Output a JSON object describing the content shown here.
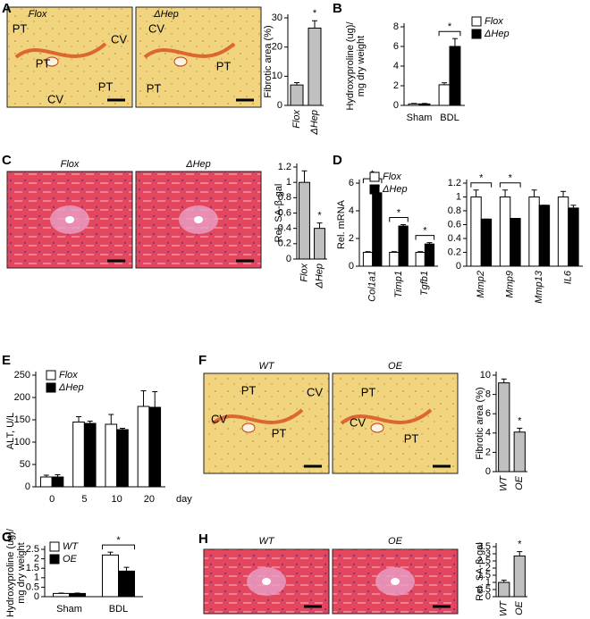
{
  "chart_data": [
    {
      "type": "bar",
      "panel": "A",
      "ylabel": [
        "Fibrotic area (%)"
      ],
      "categories": [
        "Flox",
        "ΔHep"
      ],
      "values": [
        7,
        26.5
      ],
      "errors": [
        0.8,
        2.5
      ],
      "color": "#c0c0c0",
      "ylim": [
        0,
        30
      ],
      "yticks": [
        0,
        10,
        20,
        30
      ],
      "annotations": [
        "*"
      ]
    },
    {
      "type": "bar",
      "panel": "B",
      "ylabel": [
        "Hydroxyproline (ug)/",
        "mg dry weight"
      ],
      "categories": [
        "Sham",
        "BDL"
      ],
      "series": [
        {
          "name": "Flox",
          "color": "#ffffff",
          "values": [
            0.15,
            2.1
          ],
          "errors": [
            0.05,
            0.2
          ]
        },
        {
          "name": "ΔHep",
          "color": "#000000",
          "values": [
            0.15,
            6.0
          ],
          "errors": [
            0.05,
            0.8
          ]
        }
      ],
      "ylim": [
        0,
        8
      ],
      "yticks": [
        0,
        2,
        4,
        6,
        8
      ],
      "annotations": [
        "*"
      ],
      "legend": true
    },
    {
      "type": "bar",
      "panel": "C",
      "ylabel": [
        "Rel. SA-β-gal"
      ],
      "categories": [
        "Flox",
        "ΔHep"
      ],
      "values": [
        1.0,
        0.4
      ],
      "errors": [
        0.15,
        0.07
      ],
      "color": "#c0c0c0",
      "ylim": [
        0,
        1.2
      ],
      "yticks": [
        0,
        0.2,
        0.4,
        0.6,
        0.8,
        1,
        1.2
      ],
      "annotations": [
        "*"
      ]
    },
    {
      "type": "bar",
      "panel": "D",
      "ylabel": [
        "Rel. mRNA"
      ],
      "categories": [
        "Col1a1",
        "Timp1",
        "Tgfb1"
      ],
      "series": [
        {
          "name": "Flox",
          "color": "#ffffff",
          "values": [
            1,
            1,
            1
          ],
          "errors": [
            0.05,
            0.05,
            0.05
          ]
        },
        {
          "name": "ΔHep",
          "color": "#000000",
          "values": [
            5.3,
            2.9,
            1.6
          ],
          "errors": [
            0.5,
            0.1,
            0.1
          ]
        }
      ],
      "ylim": [
        0,
        6
      ],
      "yticks": [
        0,
        2,
        4,
        6
      ],
      "annotations": [
        "*",
        "*",
        "*"
      ],
      "legend": true
    },
    {
      "type": "bar",
      "categories": [
        "Mmp2",
        "Mmp9",
        "Mmp13",
        "IL6"
      ],
      "series": [
        {
          "color": "#ffffff",
          "values": [
            1,
            1,
            1,
            1
          ],
          "errors": [
            0.1,
            0.1,
            0.1,
            0.08
          ]
        },
        {
          "color": "#000000",
          "values": [
            0.68,
            0.69,
            0.88,
            0.84
          ],
          "errors": [
            0,
            0,
            0,
            0.04
          ]
        }
      ],
      "ylim": [
        0,
        1.2
      ],
      "yticks": [
        0,
        0.2,
        0.4,
        0.6,
        0.8,
        1,
        1.2
      ],
      "annotations": [
        "*",
        "*"
      ]
    },
    {
      "type": "bar",
      "panel": "E",
      "ylabel": [
        "ALT, U/L"
      ],
      "xlabel": "day",
      "categories": [
        "0",
        "5",
        "10",
        "20"
      ],
      "series": [
        {
          "name": "Flox",
          "color": "#ffffff",
          "values": [
            22,
            145,
            140,
            180
          ],
          "errors": [
            4,
            12,
            22,
            35
          ]
        },
        {
          "name": "ΔHep",
          "color": "#000000",
          "values": [
            22,
            142,
            128,
            178
          ],
          "errors": [
            5,
            5,
            3,
            35
          ]
        }
      ],
      "ylim": [
        0,
        250
      ],
      "yticks": [
        0,
        50,
        100,
        150,
        200,
        250
      ],
      "legend": true
    },
    {
      "type": "bar",
      "panel": "F",
      "ylabel": [
        "Fibrotic area (%)"
      ],
      "categories": [
        "WT",
        "OE"
      ],
      "values": [
        9.2,
        4.1
      ],
      "errors": [
        0.4,
        0.4
      ],
      "color": "#c0c0c0",
      "ylim": [
        0,
        10
      ],
      "yticks": [
        0,
        2,
        4,
        6,
        8,
        10
      ],
      "annotations": [
        "*"
      ]
    },
    {
      "type": "bar",
      "panel": "G",
      "ylabel": [
        "Hydroxyproline (ug)/",
        "mg dry weight"
      ],
      "categories": [
        "Sham",
        "BDL"
      ],
      "series": [
        {
          "name": "WT",
          "color": "#ffffff",
          "values": [
            0.17,
            2.2
          ],
          "errors": [
            0.02,
            0.15
          ]
        },
        {
          "name": "OE",
          "color": "#000000",
          "values": [
            0.17,
            1.35
          ],
          "errors": [
            0.02,
            0.2
          ]
        }
      ],
      "ylim": [
        0,
        2.5
      ],
      "yticks": [
        0,
        0.5,
        1,
        1.5,
        2,
        2.5
      ],
      "annotations": [
        "*"
      ],
      "legend": true
    },
    {
      "type": "bar",
      "panel": "H",
      "ylabel": [
        "Rel. SA-β-gal"
      ],
      "categories": [
        "WT",
        "OE"
      ],
      "values": [
        1.0,
        2.85
      ],
      "errors": [
        0.15,
        0.3
      ],
      "color": "#c0c0c0",
      "ylim": [
        0,
        3.5
      ],
      "yticks": [
        0,
        0.5,
        1,
        1.5,
        2,
        2.5,
        3,
        3.5
      ],
      "annotations": [
        "*"
      ]
    }
  ],
  "images": [
    {
      "title": "Flox",
      "labels": [
        "PT",
        "CV",
        "PT",
        "PT",
        "CV"
      ]
    },
    {
      "title": "ΔHep",
      "labels": [
        "CV",
        "PT",
        "PT"
      ]
    },
    {
      "title": "Flox"
    },
    {
      "title": "ΔHep"
    },
    {
      "title": "WT",
      "labels": [
        "PT",
        "CV",
        "CV",
        "PT"
      ]
    },
    {
      "title": "OE",
      "labels": [
        "PT",
        "CV",
        "PT"
      ]
    },
    {
      "title": "WT"
    },
    {
      "title": "OE"
    }
  ]
}
